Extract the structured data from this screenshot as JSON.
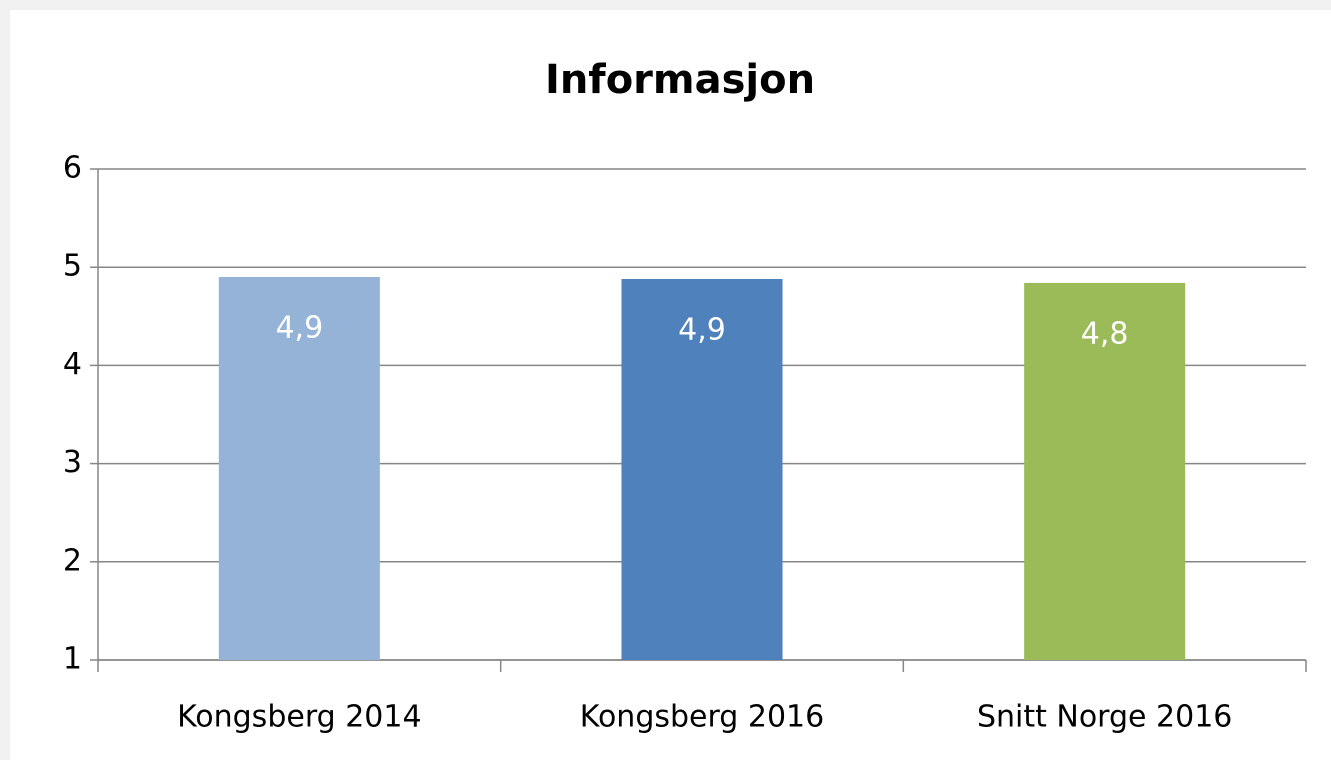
{
  "chart_data": {
    "type": "bar",
    "title": "Informasjon",
    "categories": [
      "Kongsberg 2014",
      "Kongsberg 2016",
      "Snitt Norge 2016"
    ],
    "values": [
      4.9,
      4.88,
      4.84
    ],
    "value_labels": [
      "4,9",
      "4,9",
      "4,8"
    ],
    "colors": [
      "#95b3d7",
      "#4f81bd",
      "#9bbb59"
    ],
    "ylim": [
      1,
      6
    ],
    "yticks": [
      1,
      2,
      3,
      4,
      5,
      6
    ],
    "grid": true
  }
}
